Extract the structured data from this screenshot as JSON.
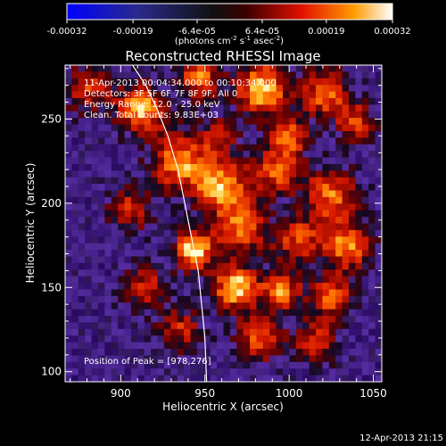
{
  "colorbar": {
    "tick_labels": [
      "-0.00032",
      "-0.00019",
      "-6.4e-05",
      "6.4e-05",
      "0.00019",
      "0.00032"
    ],
    "tick_values": [
      -0.00032,
      -0.00019,
      -6.4e-05,
      6.4e-05,
      0.00019,
      0.00032
    ],
    "range": [
      -0.00032,
      0.00032
    ],
    "units_main": "(photons cm",
    "units_exp1": "-2",
    "units_mid": " s",
    "units_exp2": "-1",
    "units_mid2": " asec",
    "units_exp3": "-2",
    "units_end": ")"
  },
  "plot": {
    "title": "Reconstructed RHESSI Image",
    "info_lines": [
      "11-Apr-2013 00:04:34.000 to 00:10:34.000",
      "Detectors: 3F 5F 6F 7F 8F 9F, All 0",
      "Energy Range: 12.0 - 25.0 keV",
      "Clean.   Total counts: 9.83E+03"
    ],
    "peak_label": "Position of Peak = [978,276]",
    "timestamp": "12-Apr-2013 21:15"
  },
  "chart_data": {
    "type": "heatmap",
    "title": "Reconstructed RHESSI Image",
    "xlabel": "Heliocentric X (arcsec)",
    "ylabel": "Heliocentric Y (arcsec)",
    "xlim": [
      867,
      1055
    ],
    "ylim": [
      94,
      282
    ],
    "xticks": [
      900,
      950,
      1000,
      1050
    ],
    "yticks": [
      100,
      150,
      200,
      250
    ],
    "peak": [
      978,
      276
    ],
    "limb_curve": [
      [
        907,
        282
      ],
      [
        915,
        270
      ],
      [
        922,
        255
      ],
      [
        928,
        240
      ],
      [
        934,
        220
      ],
      [
        938,
        200
      ],
      [
        942,
        180
      ],
      [
        946,
        160
      ],
      [
        948,
        140
      ],
      [
        950,
        120
      ],
      [
        951,
        94
      ]
    ],
    "blobs": [
      [
        880,
        268,
        10,
        0.55
      ],
      [
        912,
        256,
        10,
        0.85
      ],
      [
        947,
        274,
        8,
        0.75
      ],
      [
        984,
        268,
        11,
        0.9
      ],
      [
        1022,
        265,
        10,
        0.7
      ],
      [
        1040,
        248,
        8,
        0.55
      ],
      [
        935,
        225,
        12,
        0.75
      ],
      [
        960,
        210,
        12,
        0.8
      ],
      [
        993,
        220,
        10,
        0.65
      ],
      [
        1025,
        205,
        11,
        0.7
      ],
      [
        905,
        196,
        9,
        0.55
      ],
      [
        944,
        172,
        8,
        1.0
      ],
      [
        972,
        185,
        10,
        0.7
      ],
      [
        1005,
        178,
        10,
        0.6
      ],
      [
        1035,
        175,
        10,
        0.75
      ],
      [
        915,
        150,
        9,
        0.55
      ],
      [
        968,
        150,
        9,
        0.95
      ],
      [
        995,
        148,
        8,
        0.75
      ],
      [
        1025,
        145,
        9,
        0.65
      ],
      [
        935,
        125,
        9,
        0.5
      ],
      [
        982,
        120,
        10,
        0.6
      ],
      [
        1015,
        118,
        9,
        0.55
      ],
      [
        1000,
        240,
        8,
        0.6
      ],
      [
        958,
        240,
        7,
        0.5
      ]
    ]
  },
  "colors": {
    "background": "#000000",
    "foreground": "#ffffff"
  }
}
